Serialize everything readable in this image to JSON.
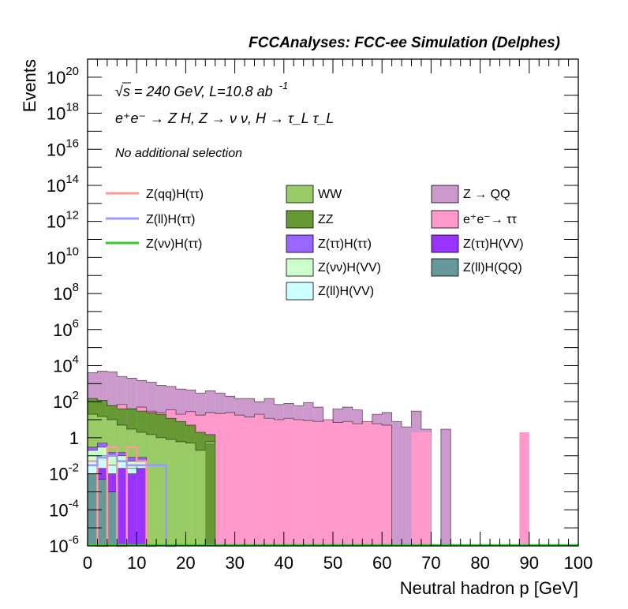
{
  "header": {
    "title": "FCCAnalyses: FCC-ee Simulation (Delphes)",
    "energy_line": "√s = 240 GeV, L=10.8 ab",
    "energy_exponent": "-1",
    "process_line": "e⁺e⁻ → Z H, Z → ν ν, H → τ_L τ_L",
    "selection": "No additional selection"
  },
  "chart_data": {
    "type": "histogram",
    "stacked": true,
    "xlabel": "Neutral hadron p [GeV]",
    "ylabel": "Events",
    "xlim": [
      0,
      100
    ],
    "ylim": [
      1e-06,
      1e+21
    ],
    "yscale": "log",
    "bin_width": 2,
    "x_ticks": [
      "0",
      "10",
      "20",
      "30",
      "40",
      "50",
      "60",
      "70",
      "80",
      "90",
      "100"
    ],
    "y_ticks": [
      {
        "base": "10",
        "exp": "20",
        "value": 1e+20
      },
      {
        "base": "10",
        "exp": "18",
        "value": 1e+18
      },
      {
        "base": "10",
        "exp": "16",
        "value": 1e+16
      },
      {
        "base": "10",
        "exp": "14",
        "value": 100000000000000.0
      },
      {
        "base": "10",
        "exp": "12",
        "value": 1000000000000.0
      },
      {
        "base": "10",
        "exp": "10",
        "value": 10000000000.0
      },
      {
        "base": "10",
        "exp": "8",
        "value": 100000000.0
      },
      {
        "base": "10",
        "exp": "6",
        "value": 1000000.0
      },
      {
        "base": "10",
        "exp": "4",
        "value": 10000.0
      },
      {
        "base": "10",
        "exp": "2",
        "value": 100.0
      },
      {
        "base": "1",
        "exp": "",
        "value": 1
      },
      {
        "base": "10",
        "exp": "-2",
        "value": 0.01
      },
      {
        "base": "10",
        "exp": "-4",
        "value": 0.0001
      },
      {
        "base": "10",
        "exp": "-6",
        "value": 1e-06
      }
    ],
    "stack_order_bottom_to_top": [
      "Z(ll)H(QQ)",
      "Z(ττ)H(VV)",
      "Z(ll)H(VV)",
      "Z(νν)H(VV)",
      "Z(ττ)H(ττ)",
      "WW",
      "ZZ",
      "e⁺e⁻→ ττ",
      "Z → QQ"
    ],
    "stack_cumulative_top": {
      "Z(ll)H(QQ)": [
        0.01,
        0.005,
        0.001,
        0.0,
        0.0,
        0.0,
        0.0,
        0.0,
        0.0,
        0.0,
        0.0,
        0.0,
        0.0,
        0.0,
        0.0,
        0.0,
        0.0,
        0.0,
        0.0,
        0.0,
        0.0,
        0.0,
        0.0,
        0.0,
        0.0,
        0.0,
        0.0,
        0.0,
        0.0,
        0.0,
        0.0,
        0.0,
        0.0,
        0.0,
        0.0,
        0.0,
        0.0,
        0.0,
        0.0,
        0.0,
        0.0,
        0.0,
        0.0,
        0.0,
        0.0,
        0.0,
        0.0,
        0.0,
        0.0,
        0.0
      ],
      "Z(ττ)H(VV)": [
        0.01,
        0.02,
        0.01,
        0.02,
        0.01,
        0.02,
        0.0,
        0.0,
        0.0,
        0.0,
        0.0,
        0.0,
        0.0,
        0.0,
        0.0,
        0.0,
        0.0,
        0.0,
        0.0,
        0.0,
        0.0,
        0.0,
        0.0,
        0.0,
        0.0,
        0.0,
        0.0,
        0.0,
        0.0,
        0.0,
        0.0,
        0.0,
        0.0,
        0.0,
        0.0,
        0.0,
        0.0,
        0.0,
        0.0,
        0.0,
        0.0,
        0.0,
        0.0,
        0.0,
        0.0,
        0.0,
        0.0,
        0.0,
        0.0,
        0.0
      ],
      "Z(ll)H(VV)": [
        0.05,
        0.1,
        0.03,
        0.05,
        0.02,
        0.03,
        0.0,
        0.0,
        0.0,
        0.0,
        0.0,
        0.0,
        0.0,
        0.0,
        0.0,
        0.0,
        0.0,
        0.0,
        0.0,
        0.0,
        0.0,
        0.0,
        0.0,
        0.0,
        0.0,
        0.0,
        0.0,
        0.0,
        0.0,
        0.0,
        0.0,
        0.0,
        0.0,
        0.0,
        0.0,
        0.0,
        0.0,
        0.0,
        0.0,
        0.0,
        0.0,
        0.0,
        0.0,
        0.0,
        0.0,
        0.0,
        0.0,
        0.0,
        0.0,
        0.0
      ],
      "Z(νν)H(VV)": [
        0.2,
        0.3,
        0.1,
        0.1,
        0.05,
        0.05,
        0.0,
        0.0,
        0.0,
        0.0,
        0.0,
        0.0,
        0.0,
        0.0,
        0.0,
        0.0,
        0.0,
        0.0,
        0.0,
        0.0,
        0.0,
        0.0,
        0.0,
        0.0,
        0.0,
        0.0,
        0.0,
        0.0,
        0.0,
        0.0,
        0.0,
        0.0,
        0.0,
        0.0,
        0.0,
        0.0,
        0.0,
        0.0,
        0.0,
        0.0,
        0.0,
        0.0,
        0.0,
        0.0,
        0.0,
        0.0,
        0.0,
        0.0,
        0.0,
        0.0
      ],
      "Z(ττ)H(ττ)": [
        0.3,
        0.5,
        0.15,
        0.15,
        0.08,
        0.08,
        0.0,
        0.0,
        0.0,
        0.0,
        0.0,
        0.0,
        0.0,
        0.0,
        0.0,
        0.0,
        0.0,
        0.0,
        0.0,
        0.0,
        0.0,
        0.0,
        0.0,
        0.0,
        0.0,
        0.0,
        0.0,
        0.0,
        0.0,
        0.0,
        0.0,
        0.0,
        0.0,
        0.0,
        0.0,
        0.0,
        0.0,
        0.0,
        0.0,
        0.0,
        0.0,
        0.0,
        0.0,
        0.0,
        0.0,
        0.0,
        0.0,
        0.0,
        0.0,
        0.0
      ],
      "WW": [
        20,
        15,
        10,
        5,
        3,
        2,
        1.5,
        1.0,
        0.8,
        0.6,
        0.5,
        0.2,
        0.6,
        0.0,
        0.0,
        0.0,
        0.0,
        0.0,
        0.0,
        0.0,
        0.0,
        0.0,
        0.0,
        0.0,
        0.0,
        0.0,
        0.0,
        0.0,
        0.0,
        0.0,
        0.0,
        0.0,
        0.0,
        0.0,
        0.0,
        0.0,
        0.0,
        0.0,
        0.0,
        0.0,
        0.0,
        0.0,
        0.0,
        0.0,
        0.0,
        0.0,
        0.0,
        0.0,
        0.0,
        0.0
      ],
      "ZZ": [
        150,
        120,
        60,
        40,
        40,
        30,
        25,
        20,
        12,
        8,
        5,
        2,
        1.5,
        0.0,
        0.0,
        0.0,
        0.0,
        0.0,
        0.0,
        0.0,
        0.0,
        0.0,
        0.0,
        0.0,
        0.0,
        0.0,
        0.0,
        0.0,
        0.0,
        0.0,
        0.0,
        0.0,
        0.0,
        0.0,
        0.0,
        0.0,
        0.0,
        0.0,
        0.0,
        0.0,
        0.0,
        0.0,
        0.0,
        0.0,
        0.0,
        0.0,
        0.0,
        0.0,
        0.0,
        0.0
      ],
      "e⁺e⁻→ ττ": [
        90,
        70,
        60,
        70,
        40,
        50,
        30,
        25,
        35,
        20,
        28,
        18,
        25,
        22,
        25,
        18,
        14,
        20,
        12,
        10,
        12,
        10,
        9,
        8,
        10,
        7,
        8,
        6,
        8,
        6,
        5,
        0,
        0,
        0,
        0,
        0,
        0,
        0,
        0,
        0,
        0,
        0,
        0,
        0,
        0,
        0,
        0,
        0,
        0,
        0
      ],
      "Z → QQ": [
        4000,
        5000,
        4500,
        2500,
        2000,
        1500,
        1200,
        800,
        700,
        500,
        450,
        300,
        400,
        300,
        200,
        150,
        150,
        100,
        150,
        70,
        80,
        60,
        90,
        50,
        5,
        40,
        50,
        35,
        6,
        20,
        25,
        8,
        4,
        30,
        3,
        6e-07,
        3,
        6e-07,
        6e-07,
        6e-07,
        6e-07,
        6e-07,
        6e-07,
        6e-07,
        6e-07,
        6e-07,
        6e-07,
        6e-07,
        6e-07,
        6e-07
      ]
    },
    "extra_isolated_bins": [
      {
        "series": "ZZ",
        "x_low": 24,
        "x_high": 26,
        "value": 0.5
      },
      {
        "series": "e⁺e⁻→ ττ",
        "x_low": 66,
        "x_high": 70,
        "value": 2.0
      },
      {
        "series": "e⁺e⁻→ ττ",
        "x_low": 88,
        "x_high": 90,
        "value": 2.0
      }
    ],
    "signal_lines": [
      {
        "name": "Z(qq)H(ττ)",
        "color": "#ff9999",
        "values": [
          0.05,
          0.0,
          0.3,
          0.0,
          0.3,
          0.05,
          0.0
        ]
      },
      {
        "name": "Z(ll)H(ττ)",
        "color": "#9999ff",
        "values": [
          0.03,
          0.08,
          0.1,
          0.05,
          0.03,
          0.03,
          0.03,
          0.03,
          0.0
        ]
      },
      {
        "name": "Z(νν)H(ττ)",
        "color": "#33cc33",
        "values": []
      }
    ],
    "legend": [
      {
        "label": "Z(qq)H(ττ)",
        "kind": "line",
        "color": "#ff9999"
      },
      {
        "label": "Z(ll)H(ττ)",
        "kind": "line",
        "color": "#9999ff"
      },
      {
        "label": "Z(νν)H(ττ)",
        "kind": "line",
        "color": "#33cc33"
      },
      {
        "label": "WW",
        "kind": "fill",
        "color": "#99cc66"
      },
      {
        "label": "ZZ",
        "kind": "fill",
        "color": "#669933"
      },
      {
        "label": "Z(ττ)H(ττ)",
        "kind": "fill",
        "color": "#9966ff"
      },
      {
        "label": "Z(νν)H(VV)",
        "kind": "fill",
        "color": "#ccffcc"
      },
      {
        "label": "Z(ll)H(VV)",
        "kind": "fill",
        "color": "#ccffff"
      },
      {
        "label": "Z → QQ",
        "kind": "fill",
        "color": "#cc99cc"
      },
      {
        "label": "e⁺e⁻→ ττ",
        "kind": "fill",
        "color": "#ff99cc"
      },
      {
        "label": "Z(ττ)H(VV)",
        "kind": "fill",
        "color": "#9933ff"
      },
      {
        "label": "Z(ll)H(QQ)",
        "kind": "fill",
        "color": "#669999"
      }
    ]
  }
}
